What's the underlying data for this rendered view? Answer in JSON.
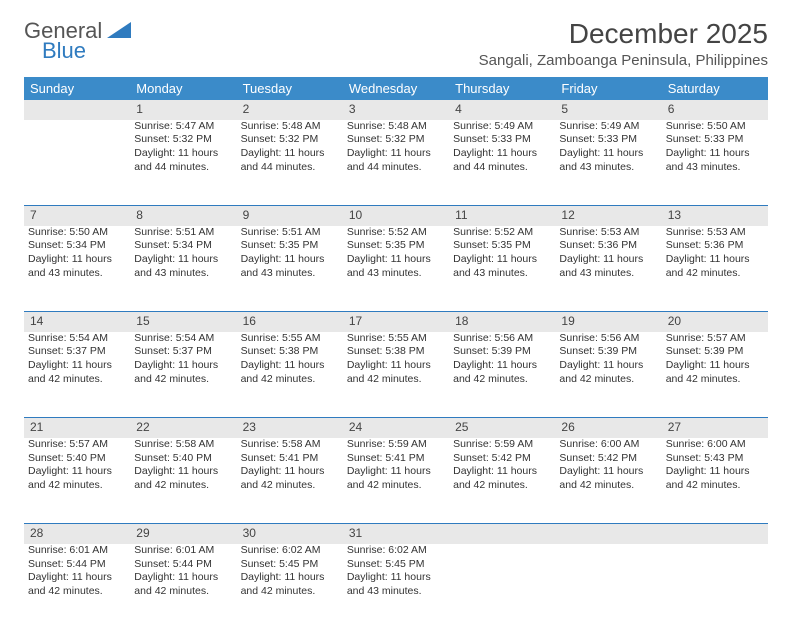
{
  "brand": {
    "part1": "General",
    "part2": "Blue"
  },
  "title": {
    "month": "December 2025",
    "location": "Sangali, Zamboanga Peninsula, Philippines"
  },
  "colors": {
    "header_bg": "#3b8bc9",
    "header_text": "#ffffff",
    "daynum_bg": "#e8e8e8",
    "row_divider": "#2f7bbf",
    "body_text": "#333333",
    "brand_accent": "#2f7bbf"
  },
  "weekdays": [
    "Sunday",
    "Monday",
    "Tuesday",
    "Wednesday",
    "Thursday",
    "Friday",
    "Saturday"
  ],
  "weeks": [
    {
      "nums": [
        "",
        "1",
        "2",
        "3",
        "4",
        "5",
        "6"
      ],
      "cells": [
        null,
        {
          "sunrise": "Sunrise: 5:47 AM",
          "sunset": "Sunset: 5:32 PM",
          "day1": "Daylight: 11 hours",
          "day2": "and 44 minutes."
        },
        {
          "sunrise": "Sunrise: 5:48 AM",
          "sunset": "Sunset: 5:32 PM",
          "day1": "Daylight: 11 hours",
          "day2": "and 44 minutes."
        },
        {
          "sunrise": "Sunrise: 5:48 AM",
          "sunset": "Sunset: 5:32 PM",
          "day1": "Daylight: 11 hours",
          "day2": "and 44 minutes."
        },
        {
          "sunrise": "Sunrise: 5:49 AM",
          "sunset": "Sunset: 5:33 PM",
          "day1": "Daylight: 11 hours",
          "day2": "and 44 minutes."
        },
        {
          "sunrise": "Sunrise: 5:49 AM",
          "sunset": "Sunset: 5:33 PM",
          "day1": "Daylight: 11 hours",
          "day2": "and 43 minutes."
        },
        {
          "sunrise": "Sunrise: 5:50 AM",
          "sunset": "Sunset: 5:33 PM",
          "day1": "Daylight: 11 hours",
          "day2": "and 43 minutes."
        }
      ]
    },
    {
      "nums": [
        "7",
        "8",
        "9",
        "10",
        "11",
        "12",
        "13"
      ],
      "cells": [
        {
          "sunrise": "Sunrise: 5:50 AM",
          "sunset": "Sunset: 5:34 PM",
          "day1": "Daylight: 11 hours",
          "day2": "and 43 minutes."
        },
        {
          "sunrise": "Sunrise: 5:51 AM",
          "sunset": "Sunset: 5:34 PM",
          "day1": "Daylight: 11 hours",
          "day2": "and 43 minutes."
        },
        {
          "sunrise": "Sunrise: 5:51 AM",
          "sunset": "Sunset: 5:35 PM",
          "day1": "Daylight: 11 hours",
          "day2": "and 43 minutes."
        },
        {
          "sunrise": "Sunrise: 5:52 AM",
          "sunset": "Sunset: 5:35 PM",
          "day1": "Daylight: 11 hours",
          "day2": "and 43 minutes."
        },
        {
          "sunrise": "Sunrise: 5:52 AM",
          "sunset": "Sunset: 5:35 PM",
          "day1": "Daylight: 11 hours",
          "day2": "and 43 minutes."
        },
        {
          "sunrise": "Sunrise: 5:53 AM",
          "sunset": "Sunset: 5:36 PM",
          "day1": "Daylight: 11 hours",
          "day2": "and 43 minutes."
        },
        {
          "sunrise": "Sunrise: 5:53 AM",
          "sunset": "Sunset: 5:36 PM",
          "day1": "Daylight: 11 hours",
          "day2": "and 42 minutes."
        }
      ]
    },
    {
      "nums": [
        "14",
        "15",
        "16",
        "17",
        "18",
        "19",
        "20"
      ],
      "cells": [
        {
          "sunrise": "Sunrise: 5:54 AM",
          "sunset": "Sunset: 5:37 PM",
          "day1": "Daylight: 11 hours",
          "day2": "and 42 minutes."
        },
        {
          "sunrise": "Sunrise: 5:54 AM",
          "sunset": "Sunset: 5:37 PM",
          "day1": "Daylight: 11 hours",
          "day2": "and 42 minutes."
        },
        {
          "sunrise": "Sunrise: 5:55 AM",
          "sunset": "Sunset: 5:38 PM",
          "day1": "Daylight: 11 hours",
          "day2": "and 42 minutes."
        },
        {
          "sunrise": "Sunrise: 5:55 AM",
          "sunset": "Sunset: 5:38 PM",
          "day1": "Daylight: 11 hours",
          "day2": "and 42 minutes."
        },
        {
          "sunrise": "Sunrise: 5:56 AM",
          "sunset": "Sunset: 5:39 PM",
          "day1": "Daylight: 11 hours",
          "day2": "and 42 minutes."
        },
        {
          "sunrise": "Sunrise: 5:56 AM",
          "sunset": "Sunset: 5:39 PM",
          "day1": "Daylight: 11 hours",
          "day2": "and 42 minutes."
        },
        {
          "sunrise": "Sunrise: 5:57 AM",
          "sunset": "Sunset: 5:39 PM",
          "day1": "Daylight: 11 hours",
          "day2": "and 42 minutes."
        }
      ]
    },
    {
      "nums": [
        "21",
        "22",
        "23",
        "24",
        "25",
        "26",
        "27"
      ],
      "cells": [
        {
          "sunrise": "Sunrise: 5:57 AM",
          "sunset": "Sunset: 5:40 PM",
          "day1": "Daylight: 11 hours",
          "day2": "and 42 minutes."
        },
        {
          "sunrise": "Sunrise: 5:58 AM",
          "sunset": "Sunset: 5:40 PM",
          "day1": "Daylight: 11 hours",
          "day2": "and 42 minutes."
        },
        {
          "sunrise": "Sunrise: 5:58 AM",
          "sunset": "Sunset: 5:41 PM",
          "day1": "Daylight: 11 hours",
          "day2": "and 42 minutes."
        },
        {
          "sunrise": "Sunrise: 5:59 AM",
          "sunset": "Sunset: 5:41 PM",
          "day1": "Daylight: 11 hours",
          "day2": "and 42 minutes."
        },
        {
          "sunrise": "Sunrise: 5:59 AM",
          "sunset": "Sunset: 5:42 PM",
          "day1": "Daylight: 11 hours",
          "day2": "and 42 minutes."
        },
        {
          "sunrise": "Sunrise: 6:00 AM",
          "sunset": "Sunset: 5:42 PM",
          "day1": "Daylight: 11 hours",
          "day2": "and 42 minutes."
        },
        {
          "sunrise": "Sunrise: 6:00 AM",
          "sunset": "Sunset: 5:43 PM",
          "day1": "Daylight: 11 hours",
          "day2": "and 42 minutes."
        }
      ]
    },
    {
      "nums": [
        "28",
        "29",
        "30",
        "31",
        "",
        "",
        ""
      ],
      "cells": [
        {
          "sunrise": "Sunrise: 6:01 AM",
          "sunset": "Sunset: 5:44 PM",
          "day1": "Daylight: 11 hours",
          "day2": "and 42 minutes."
        },
        {
          "sunrise": "Sunrise: 6:01 AM",
          "sunset": "Sunset: 5:44 PM",
          "day1": "Daylight: 11 hours",
          "day2": "and 42 minutes."
        },
        {
          "sunrise": "Sunrise: 6:02 AM",
          "sunset": "Sunset: 5:45 PM",
          "day1": "Daylight: 11 hours",
          "day2": "and 42 minutes."
        },
        {
          "sunrise": "Sunrise: 6:02 AM",
          "sunset": "Sunset: 5:45 PM",
          "day1": "Daylight: 11 hours",
          "day2": "and 43 minutes."
        },
        null,
        null,
        null
      ]
    }
  ]
}
